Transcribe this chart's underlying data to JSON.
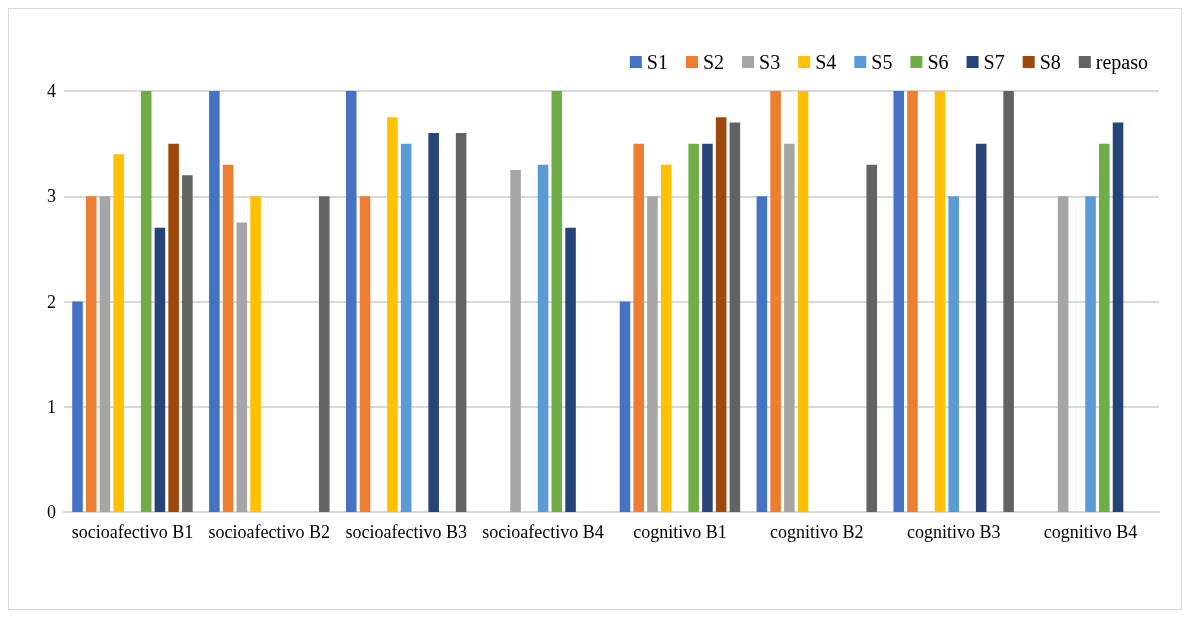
{
  "chart_data": {
    "type": "bar",
    "categories": [
      "socioafectivo B1",
      "socioafectivo B2",
      "socioafectivo B3",
      "socioafectivo B4",
      "cognitivo B1",
      "cognitivo B2",
      "cognitivo B3",
      "cognitivo B4"
    ],
    "series": [
      {
        "name": "S1",
        "color": "#4472c4",
        "values": [
          2,
          4,
          4,
          null,
          2,
          3,
          4,
          null
        ]
      },
      {
        "name": "S2",
        "color": "#ed7d31",
        "values": [
          3,
          3.3,
          3,
          null,
          3.5,
          4,
          4,
          null
        ]
      },
      {
        "name": "S3",
        "color": "#a5a5a5",
        "values": [
          3,
          2.75,
          null,
          3.25,
          3,
          3.5,
          null,
          3
        ]
      },
      {
        "name": "S4",
        "color": "#ffc000",
        "values": [
          3.4,
          3,
          3.75,
          null,
          3.3,
          4,
          4,
          null
        ]
      },
      {
        "name": "S5",
        "color": "#5b9bd5",
        "values": [
          null,
          null,
          3.5,
          3.3,
          null,
          null,
          3,
          3
        ]
      },
      {
        "name": "S6",
        "color": "#70ad47",
        "values": [
          4,
          null,
          null,
          4,
          3.5,
          null,
          null,
          3.5
        ]
      },
      {
        "name": "S7",
        "color": "#264478",
        "values": [
          2.7,
          null,
          3.6,
          2.7,
          3.5,
          null,
          3.5,
          3.7
        ]
      },
      {
        "name": "S8",
        "color": "#9e480e",
        "values": [
          3.5,
          null,
          null,
          null,
          3.75,
          null,
          null,
          null
        ]
      },
      {
        "name": "repaso",
        "color": "#636363",
        "values": [
          3.2,
          3,
          3.6,
          null,
          3.7,
          3.3,
          4,
          null
        ]
      }
    ],
    "ylim": [
      0,
      4
    ],
    "yticks": [
      0,
      1,
      2,
      3,
      4
    ],
    "grid": "y",
    "legend": "top right"
  }
}
